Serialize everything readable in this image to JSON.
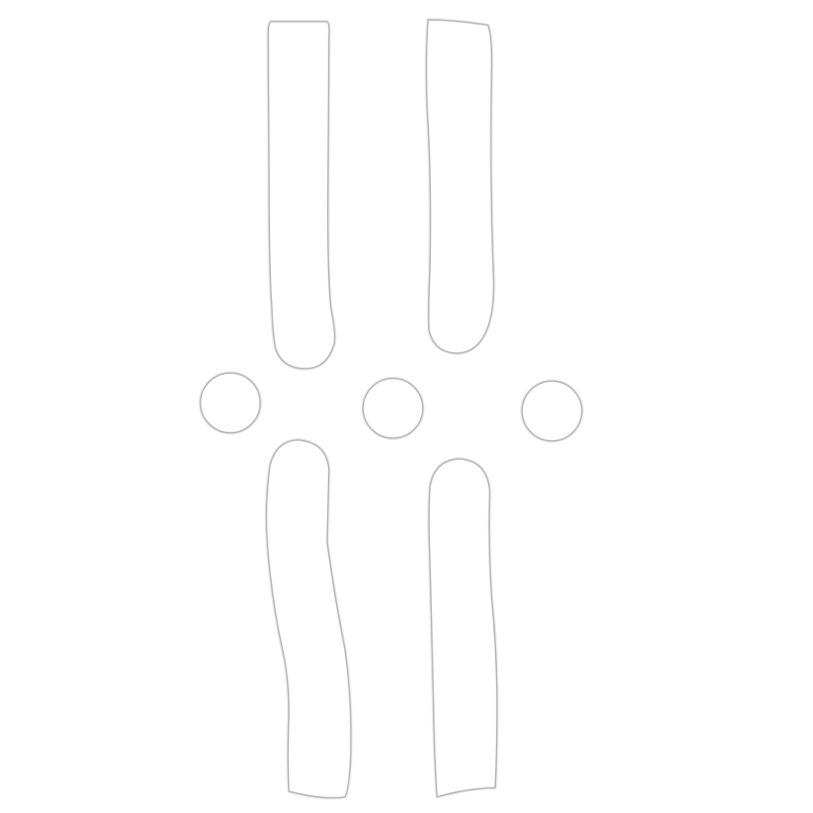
{
  "colors": {
    "background": "#ffffff",
    "shape_fill": "#ffffff",
    "shape_stroke": "#b5b5b5"
  },
  "shapes": [
    {
      "kind": "rounded-strip",
      "name": "strip-top-left"
    },
    {
      "kind": "rounded-strip",
      "name": "strip-top-right"
    },
    {
      "kind": "circle",
      "name": "circle-left"
    },
    {
      "kind": "circle",
      "name": "circle-middle"
    },
    {
      "kind": "circle",
      "name": "circle-right"
    },
    {
      "kind": "rounded-strip",
      "name": "strip-bottom-left"
    },
    {
      "kind": "rounded-strip",
      "name": "strip-bottom-right"
    }
  ]
}
